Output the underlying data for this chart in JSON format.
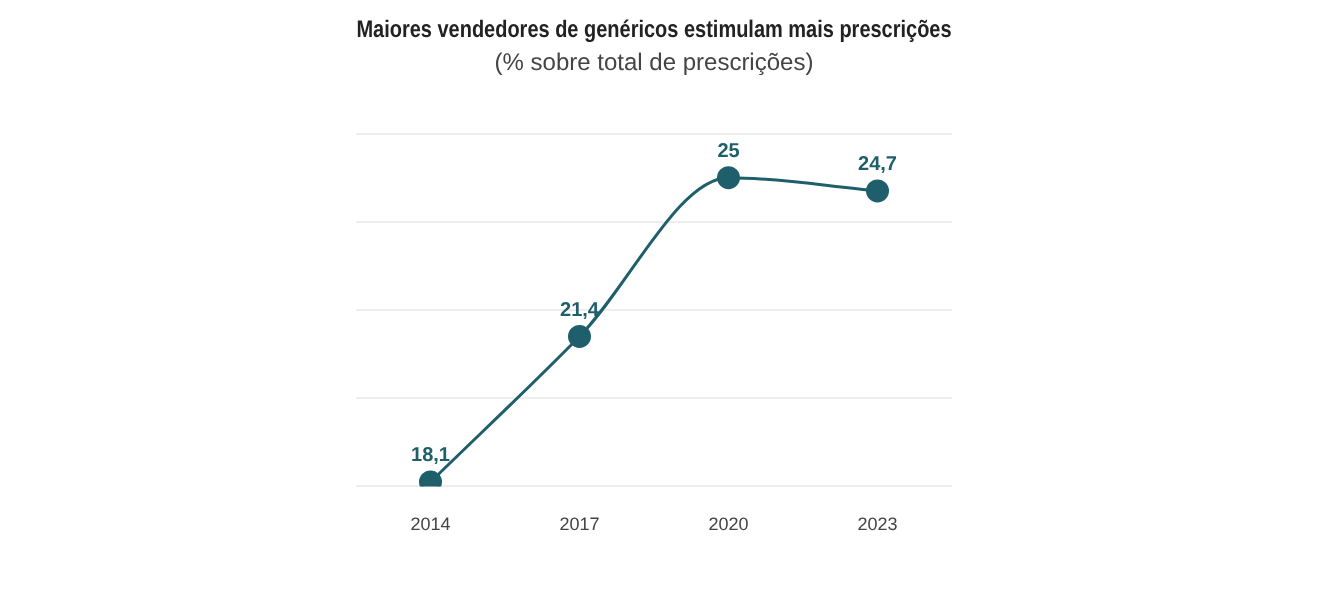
{
  "chart_data": {
    "type": "line",
    "title": "Maiores vendedores de genéricos estimulam mais prescrições",
    "subtitle": "(% sobre total de prescrições)",
    "categories": [
      "2014",
      "2017",
      "2020",
      "2023"
    ],
    "series": [
      {
        "color": "#1e5f6b",
        "values": [
          18.1,
          21.4,
          25,
          24.7
        ],
        "value_labels": [
          "18,1",
          "21,4",
          "25",
          "24,7"
        ]
      }
    ],
    "ylim": [
      18,
      26
    ],
    "yticks": [
      {
        "value": 18,
        "label": null
      },
      {
        "value": 20,
        "label": null
      },
      {
        "value": 22,
        "label": null
      },
      {
        "value": 24,
        "label": null
      },
      {
        "value": 26,
        "label": null
      }
    ],
    "tick_labels": "x",
    "grid": "y",
    "legend": false,
    "marker": "circle",
    "line_style": "solid"
  }
}
